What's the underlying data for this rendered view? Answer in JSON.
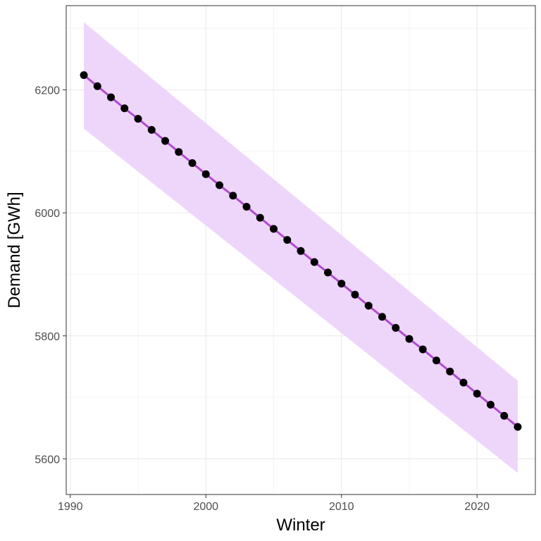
{
  "chart_data": {
    "type": "line",
    "xlabel": "Winter",
    "ylabel": "Demand [GWh]",
    "xlim": [
      1989.7,
      2024.3
    ],
    "ylim": [
      5542,
      6337
    ],
    "x_ticks": [
      1990,
      2000,
      2010,
      2020
    ],
    "x_tick_labels": [
      "1990",
      "2000",
      "2010",
      "2020"
    ],
    "y_ticks": [
      5600,
      5800,
      6000,
      6200
    ],
    "y_tick_labels": [
      "5600",
      "5800",
      "6000",
      "6200"
    ],
    "grid": true,
    "legend": "none",
    "colors": {
      "line": "#b24ad1",
      "band": "#eed6fb",
      "points": "#000000",
      "panel_border": "#333333",
      "grid_major": "#ebebeb",
      "grid_minor": "#f4f4f4"
    },
    "series": [
      {
        "x": [
          1991,
          1992,
          1993,
          1994,
          1995,
          1996,
          1997,
          1998,
          1999,
          2000,
          2001,
          2002,
          2003,
          2004,
          2005,
          2006,
          2007,
          2008,
          2009,
          2010,
          2011,
          2012,
          2013,
          2014,
          2015,
          2016,
          2017,
          2018,
          2019,
          2020,
          2021,
          2022,
          2023
        ],
        "y": [
          6224,
          6206,
          6188,
          6170,
          6153,
          6135,
          6117,
          6099,
          6081,
          6063,
          6045,
          6028,
          6010,
          5992,
          5974,
          5956,
          5938,
          5920,
          5903,
          5885,
          5867,
          5849,
          5831,
          5813,
          5795,
          5778,
          5760,
          5742,
          5724,
          5706,
          5688,
          5670,
          5652
        ]
      }
    ],
    "band": {
      "x": [
        1991,
        2023
      ],
      "upper": [
        6310,
        5727
      ],
      "lower": [
        6137,
        5577
      ]
    }
  }
}
